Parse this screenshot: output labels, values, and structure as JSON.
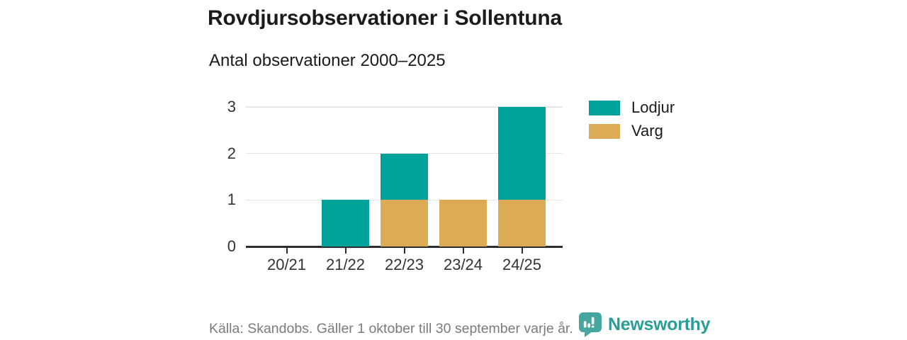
{
  "chart_data": {
    "type": "bar",
    "stacked": true,
    "title": "Rovdjursobservationer i Sollentuna",
    "subtitle": "Antal observationer 2000–2025",
    "categories": [
      "20/21",
      "21/22",
      "22/23",
      "23/24",
      "24/25"
    ],
    "series": [
      {
        "name": "Varg",
        "color": "#DBAB55",
        "values": [
          0,
          0,
          1,
          1,
          1
        ]
      },
      {
        "name": "Lodjur",
        "color": "#00A299",
        "values": [
          0,
          1,
          1,
          0,
          2
        ]
      }
    ],
    "totals": [
      0,
      1,
      2,
      1,
      3
    ],
    "legend_order": [
      "Lodjur",
      "Varg"
    ],
    "legend_position": "right-top",
    "ylim": [
      0,
      3
    ],
    "yticks": [
      0,
      1,
      2,
      3
    ],
    "grid": "horizontal",
    "axis_color": "#2d2d2d",
    "grid_color": "#e6e6e6"
  },
  "footer": {
    "source": "Källa: Skandobs. Gäller 1 oktober till 30 september varje år.",
    "brand": {
      "name": "Newsworthy",
      "text_color": "#2A9D96",
      "icon_color": "#46A7A0"
    }
  }
}
